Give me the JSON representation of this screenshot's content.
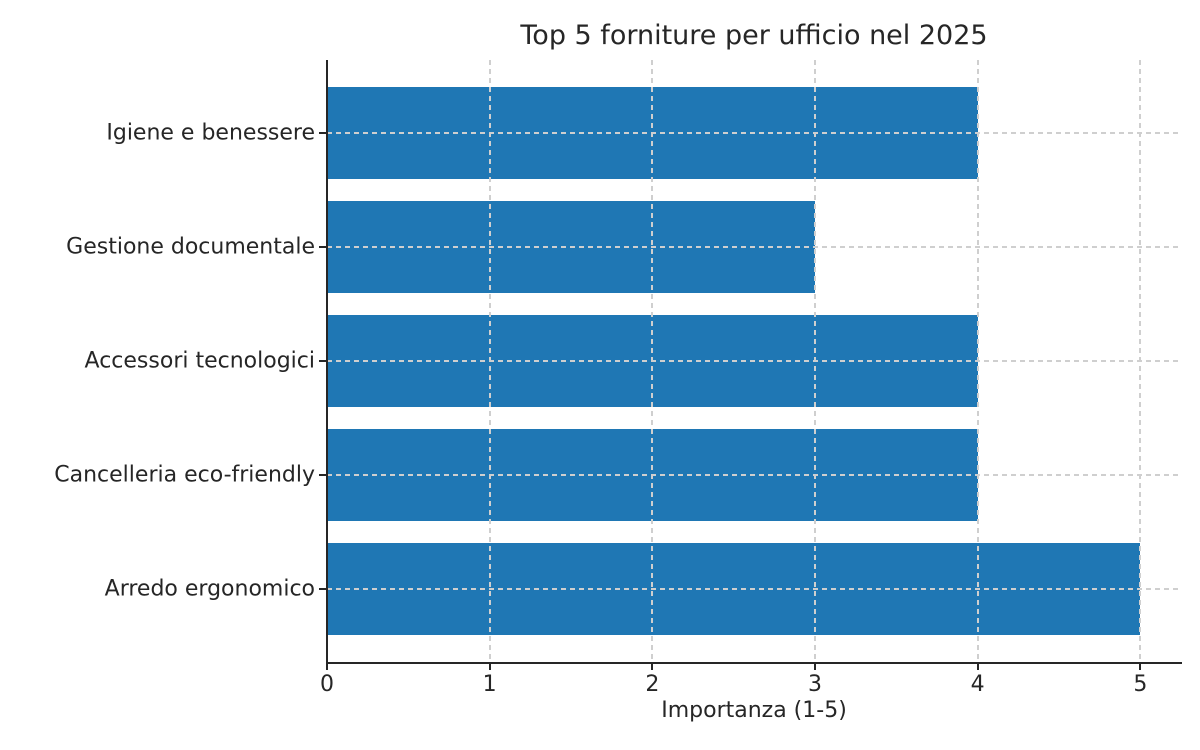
{
  "chart_data": {
    "type": "bar",
    "orientation": "horizontal",
    "title": "Top 5 forniture per ufficio nel 2025",
    "xlabel": "Importanza (1-5)",
    "ylabel": "",
    "categories": [
      "Igiene e benessere",
      "Gestione documentale",
      "Accessori tecnologici",
      "Cancelleria eco-friendly",
      "Arredo ergonomico"
    ],
    "values": [
      4,
      3,
      4,
      4,
      5
    ],
    "xticks": [
      0,
      1,
      2,
      3,
      4,
      5
    ],
    "xlim": [
      0,
      5.25
    ],
    "bar_fraction_of_slot": 0.8,
    "grid": true,
    "grid_style": "dashed",
    "grid_above_bars": true,
    "legend": "none",
    "colors": {
      "bar": "#1f77b4",
      "grid": "#cfcfcf",
      "axis": "#262626",
      "text": "#262626",
      "background": "#ffffff"
    }
  }
}
